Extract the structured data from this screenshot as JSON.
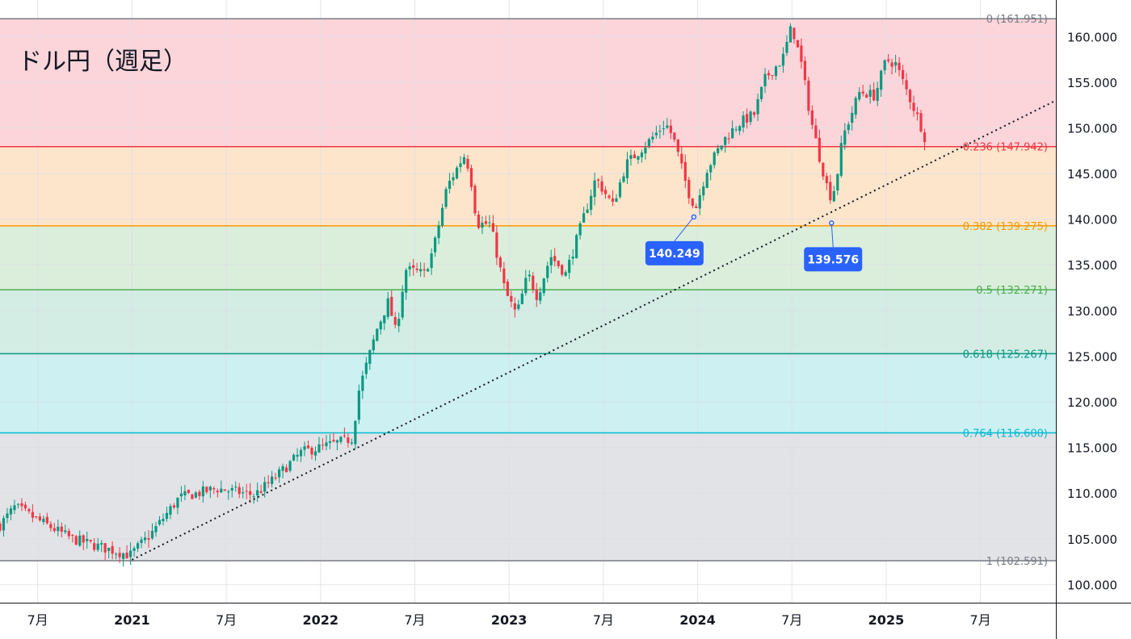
{
  "chart_data": {
    "type": "candlestick",
    "title": "ドル円（週足）",
    "y_range": [
      98,
      164
    ],
    "y_ticks": [
      100,
      105,
      110,
      115,
      120,
      125,
      130,
      135,
      140,
      145,
      150,
      155,
      160
    ],
    "y_tick_labels": [
      "100.000",
      "105.000",
      "110.000",
      "115.000",
      "120.000",
      "125.000",
      "130.000",
      "135.000",
      "140.000",
      "145.000",
      "150.000",
      "155.000",
      "160.000"
    ],
    "x_range": [
      2020.3,
      2025.9
    ],
    "x_ticks": [
      {
        "x": 2020.5,
        "label": "7月",
        "major": false
      },
      {
        "x": 2021.0,
        "label": "2021",
        "major": true
      },
      {
        "x": 2021.5,
        "label": "7月",
        "major": false
      },
      {
        "x": 2022.0,
        "label": "2022",
        "major": true
      },
      {
        "x": 2022.5,
        "label": "7月",
        "major": false
      },
      {
        "x": 2023.0,
        "label": "2023",
        "major": true
      },
      {
        "x": 2023.5,
        "label": "7月",
        "major": false
      },
      {
        "x": 2024.0,
        "label": "2024",
        "major": true
      },
      {
        "x": 2024.5,
        "label": "7月",
        "major": false
      },
      {
        "x": 2025.0,
        "label": "2025",
        "major": true
      },
      {
        "x": 2025.5,
        "label": "7月",
        "major": false
      }
    ],
    "fib_levels": [
      {
        "ratio": "0",
        "value": 161.951,
        "label": "0 (161.951)",
        "line": "#787b86",
        "fill": "#fcd5da"
      },
      {
        "ratio": "0.236",
        "value": 147.942,
        "label": "0.236 (147.942)",
        "line": "#f23645",
        "fill": "#fde5cc"
      },
      {
        "ratio": "0.382",
        "value": 139.275,
        "label": "0.382 (139.275)",
        "line": "#ff9800",
        "fill": "#dbeedb"
      },
      {
        "ratio": "0.5",
        "value": 132.271,
        "label": "0.5 (132.271)",
        "line": "#4caf50",
        "fill": "#d3ece4"
      },
      {
        "ratio": "0.618",
        "value": 125.267,
        "label": "0.618 (125.267)",
        "line": "#089981",
        "fill": "#cdf0f2"
      },
      {
        "ratio": "0.764",
        "value": 116.6,
        "label": "0.764 (116.600)",
        "line": "#00bcd4",
        "fill": "#e2e3e6"
      },
      {
        "ratio": "1",
        "value": 102.591,
        "label": "1 (102.591)",
        "line": "#787b86",
        "fill": null
      }
    ],
    "trendline": {
      "x1": 2021.0,
      "y1": 102.7,
      "x2": 2025.9,
      "y2": 153.0,
      "style": "dotted"
    },
    "annotations": [
      {
        "label": "140.249",
        "x": 2023.98,
        "y": 140.249
      },
      {
        "label": "139.576",
        "x": 2024.71,
        "y": 139.576
      }
    ],
    "anchors": [
      [
        2020.3,
        106.5
      ],
      [
        2020.38,
        108.5
      ],
      [
        2020.42,
        108.0
      ],
      [
        2020.55,
        106.5
      ],
      [
        2020.68,
        105.0
      ],
      [
        2020.85,
        104.0
      ],
      [
        2020.99,
        103.2
      ],
      [
        2021.1,
        105.5
      ],
      [
        2021.25,
        109.5
      ],
      [
        2021.45,
        110.5
      ],
      [
        2021.65,
        109.8
      ],
      [
        2021.75,
        111.5
      ],
      [
        2021.9,
        114.5
      ],
      [
        2022.0,
        115.0
      ],
      [
        2022.17,
        116.0
      ],
      [
        2022.2,
        121.0
      ],
      [
        2022.3,
        128.0
      ],
      [
        2022.36,
        131.0
      ],
      [
        2022.4,
        127.5
      ],
      [
        2022.45,
        134.5
      ],
      [
        2022.55,
        134.0
      ],
      [
        2022.6,
        136.8
      ],
      [
        2022.67,
        143.5
      ],
      [
        2022.76,
        147.0
      ],
      [
        2022.79,
        145.5
      ],
      [
        2022.83,
        139.5
      ],
      [
        2022.9,
        139.5
      ],
      [
        2022.98,
        132.0
      ],
      [
        2023.04,
        129.5
      ],
      [
        2023.1,
        134.0
      ],
      [
        2023.15,
        131.5
      ],
      [
        2023.22,
        136.0
      ],
      [
        2023.3,
        134.0
      ],
      [
        2023.37,
        138.5
      ],
      [
        2023.46,
        144.5
      ],
      [
        2023.55,
        141.5
      ],
      [
        2023.62,
        146.0
      ],
      [
        2023.74,
        148.5
      ],
      [
        2023.83,
        150.5
      ],
      [
        2023.87,
        149.0
      ],
      [
        2023.95,
        143.0
      ],
      [
        2023.99,
        141.2
      ],
      [
        2024.05,
        145.5
      ],
      [
        2024.15,
        149.0
      ],
      [
        2024.22,
        150.5
      ],
      [
        2024.3,
        151.5
      ],
      [
        2024.36,
        155.5
      ],
      [
        2024.45,
        157.5
      ],
      [
        2024.5,
        161.2
      ],
      [
        2024.55,
        157.0
      ],
      [
        2024.6,
        151.0
      ],
      [
        2024.65,
        146.5
      ],
      [
        2024.7,
        142.5
      ],
      [
        2024.73,
        143.5
      ],
      [
        2024.77,
        149.0
      ],
      [
        2024.86,
        154.0
      ],
      [
        2024.94,
        153.5
      ],
      [
        2025.0,
        157.5
      ],
      [
        2025.05,
        157.0
      ],
      [
        2025.13,
        153.0
      ],
      [
        2025.18,
        150.5
      ],
      [
        2025.22,
        148.0
      ]
    ]
  }
}
